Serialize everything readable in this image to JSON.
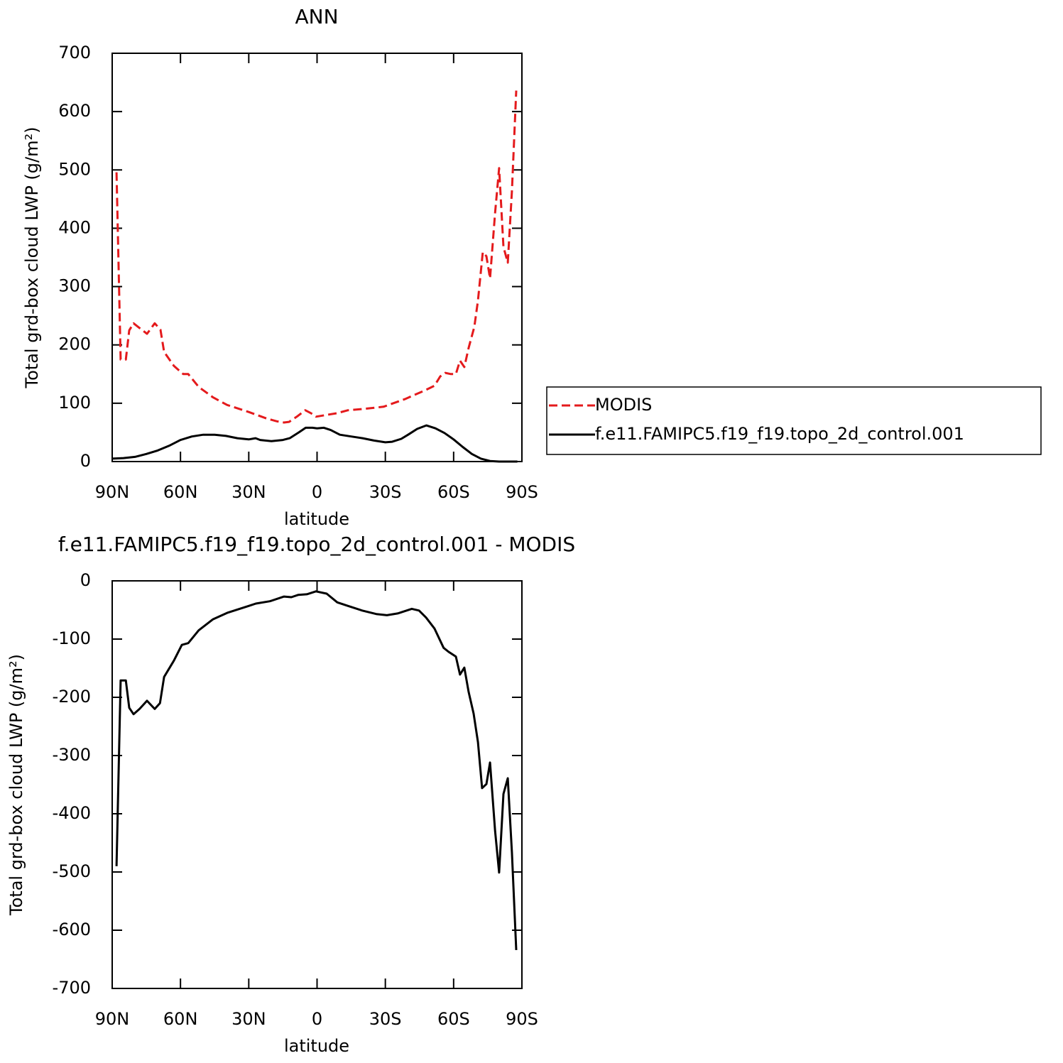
{
  "chart_data": [
    {
      "type": "line",
      "title": "ANN",
      "xlabel": "latitude",
      "ylabel": "Total grd-box cloud LWP (g/m²)",
      "xlim": [
        90,
        -90
      ],
      "ylim": [
        0,
        700
      ],
      "xticks": [
        {
          "value": 90,
          "label": "90N"
        },
        {
          "value": 60,
          "label": "60N"
        },
        {
          "value": 30,
          "label": "30N"
        },
        0,
        {
          "value": -30,
          "label": "30S"
        },
        {
          "value": -60,
          "label": "60S"
        },
        {
          "value": -90,
          "label": "90S"
        }
      ],
      "yticks": [
        0,
        100,
        200,
        300,
        400,
        500,
        600,
        700
      ],
      "legend": "right",
      "series": [
        {
          "name": "MODIS",
          "color": "#e41a1c",
          "dash": true,
          "x": [
            88.1,
            86.3,
            84,
            82.5,
            80.6,
            78,
            74.7,
            71.3,
            68.8,
            67.2,
            62.9,
            58.8,
            56.6,
            52,
            45.7,
            39.5,
            30,
            22.3,
            17.7,
            14.5,
            12.3,
            8.9,
            5.2,
            2.7,
            0.5,
            -4.2,
            -8.9,
            -13.6,
            -19.8,
            -29.2,
            -38.6,
            -47.9,
            -51.6,
            -54.1,
            -56.3,
            -58.8,
            -61,
            -62.8,
            -64.7,
            -66.6,
            -69.1,
            -70.7,
            -72.8,
            -74.4,
            -76,
            -78.2,
            -80,
            -81.9,
            -83.8,
            -85.6,
            -87.5
          ],
          "values": [
            496,
            175,
            175,
            225,
            237,
            229,
            219,
            237,
            226,
            188,
            164,
            150,
            150,
            128,
            110,
            97,
            85,
            74,
            69,
            67,
            68,
            77,
            88,
            83,
            77,
            80,
            83,
            88,
            90,
            94,
            107,
            123,
            130,
            146,
            152,
            150,
            150,
            173,
            162,
            195,
            231,
            276,
            359,
            352,
            314,
            426,
            503,
            368,
            341,
            463,
            636
          ]
        },
        {
          "name": "f.e11.FAMIPC5.f19_f19.topo_2d_control.001",
          "color": "#000000",
          "dash": false,
          "x": [
            90,
            85,
            80,
            75,
            70,
            65,
            60,
            55,
            50,
            45,
            40,
            35,
            30,
            27,
            25,
            20,
            15,
            12,
            8,
            5,
            2,
            0,
            -3,
            -6,
            -10,
            -15,
            -20,
            -25,
            -30,
            -33,
            -37,
            -40,
            -44,
            -48,
            -52,
            -56,
            -60,
            -64,
            -68,
            -72,
            -76,
            -80,
            -85,
            -88
          ],
          "values": [
            5,
            6,
            8,
            13,
            19,
            27,
            37,
            43,
            46,
            46,
            44,
            40,
            38,
            40,
            37,
            35,
            37,
            40,
            50,
            58,
            58,
            57,
            58,
            54,
            46,
            43,
            40,
            36,
            33,
            34,
            39,
            46,
            56,
            62,
            57,
            49,
            38,
            25,
            13,
            5,
            1,
            0,
            0,
            0
          ]
        }
      ]
    },
    {
      "type": "line",
      "title": "f.e11.FAMIPC5.f19_f19.topo_2d_control.001 - MODIS",
      "xlabel": "latitude",
      "ylabel": "Total grd-box cloud LWP (g/m²)",
      "xlim": [
        90,
        -90
      ],
      "ylim": [
        -700,
        0
      ],
      "xticks": [
        {
          "value": 90,
          "label": "90N"
        },
        {
          "value": 60,
          "label": "60N"
        },
        {
          "value": 30,
          "label": "30N"
        },
        0,
        {
          "value": -30,
          "label": "30S"
        },
        {
          "value": -60,
          "label": "60S"
        },
        {
          "value": -90,
          "label": "90S"
        }
      ],
      "yticks": [
        0,
        -100,
        -200,
        -300,
        -400,
        -500,
        -600,
        -700
      ],
      "series": [
        {
          "color": "#000000",
          "dash": false,
          "x": [
            88.1,
            86.3,
            84,
            82.5,
            80.6,
            78,
            74.7,
            71.3,
            69,
            67.2,
            62.9,
            59.4,
            56.6,
            52,
            45.7,
            39.5,
            30,
            26.9,
            20.7,
            14.5,
            11.3,
            8.2,
            4.5,
            0.5,
            -4.2,
            -8.9,
            -13.6,
            -19.8,
            -26,
            -30.7,
            -35.4,
            -41.6,
            -44.8,
            -47.9,
            -51.6,
            -55.6,
            -57.8,
            -61,
            -62.8,
            -64.7,
            -66.6,
            -68.8,
            -70.7,
            -72.5,
            -74.4,
            -76,
            -78.2,
            -80,
            -81.9,
            -83.8,
            -85.6,
            -87.5
          ],
          "values": [
            -490,
            -171,
            -171,
            -218,
            -229,
            -220,
            -206,
            -220,
            -210,
            -165,
            -137,
            -110,
            -107,
            -85,
            -66,
            -55,
            -43,
            -39,
            -35,
            -27,
            -28,
            -24,
            -23,
            -18,
            -22,
            -37,
            -43,
            -51,
            -57,
            -59,
            -56,
            -48,
            -51,
            -63,
            -82,
            -115,
            -122,
            -130,
            -161,
            -149,
            -191,
            -228,
            -277,
            -356,
            -349,
            -312,
            -429,
            -501,
            -366,
            -339,
            -466,
            -634
          ]
        }
      ]
    }
  ]
}
